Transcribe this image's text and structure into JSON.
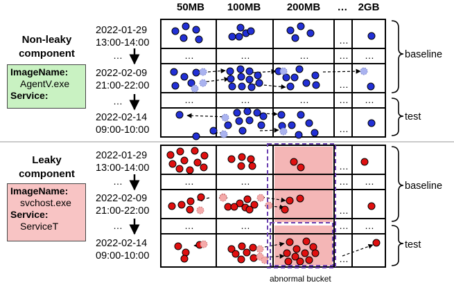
{
  "columns": [
    "50MB",
    "100MB",
    "200MB",
    "…",
    "2GB"
  ],
  "components": [
    {
      "title": "Non-leaky component",
      "title_lines": [
        "Non-leaky",
        "component"
      ],
      "image_label": "ImageName:",
      "image_value": "AgentV.exe",
      "service_label": "Service:",
      "service_value": "",
      "box_color": "#c9f2c2",
      "dot_color": "#2230d6",
      "rows": [
        {
          "date": "2022-01-29",
          "time": "13:00-14:00"
        },
        {
          "date": "…",
          "time": ""
        },
        {
          "date": "2022-02-09",
          "time": "21:00-22:00"
        },
        {
          "date": "…",
          "time": ""
        },
        {
          "date": "2022-02-14",
          "time": "09:00-10:00"
        }
      ]
    },
    {
      "title": "Leaky component",
      "title_lines": [
        "Leaky",
        "component"
      ],
      "image_label": "ImageName:",
      "image_value": "svchost.exe",
      "service_label": "Service:",
      "service_value": "ServiceT",
      "box_color": "#f8c4c4",
      "dot_color": "#e01010",
      "rows": [
        {
          "date": "2022-01-29",
          "time": "13:00-14:00"
        },
        {
          "date": "…",
          "time": ""
        },
        {
          "date": "2022-02-09",
          "time": "21:00-22:00"
        },
        {
          "date": "…",
          "time": ""
        },
        {
          "date": "2022-02-14",
          "time": "09:00-10:00"
        }
      ]
    }
  ],
  "cell_ellipsis": "…",
  "baseline_label": "baseline",
  "test_label": "test",
  "abnormal_label": "abnormal bucket",
  "colors": {
    "blue_dot": "#2230d6",
    "red_dot": "#e01010",
    "faded_blue": "#aab3f0",
    "faded_red": "#f5aaaa",
    "abnormal_fill": "#f4b6b6",
    "abnormal_border": "#6a3fb0",
    "separator": "#aaaaaa"
  }
}
